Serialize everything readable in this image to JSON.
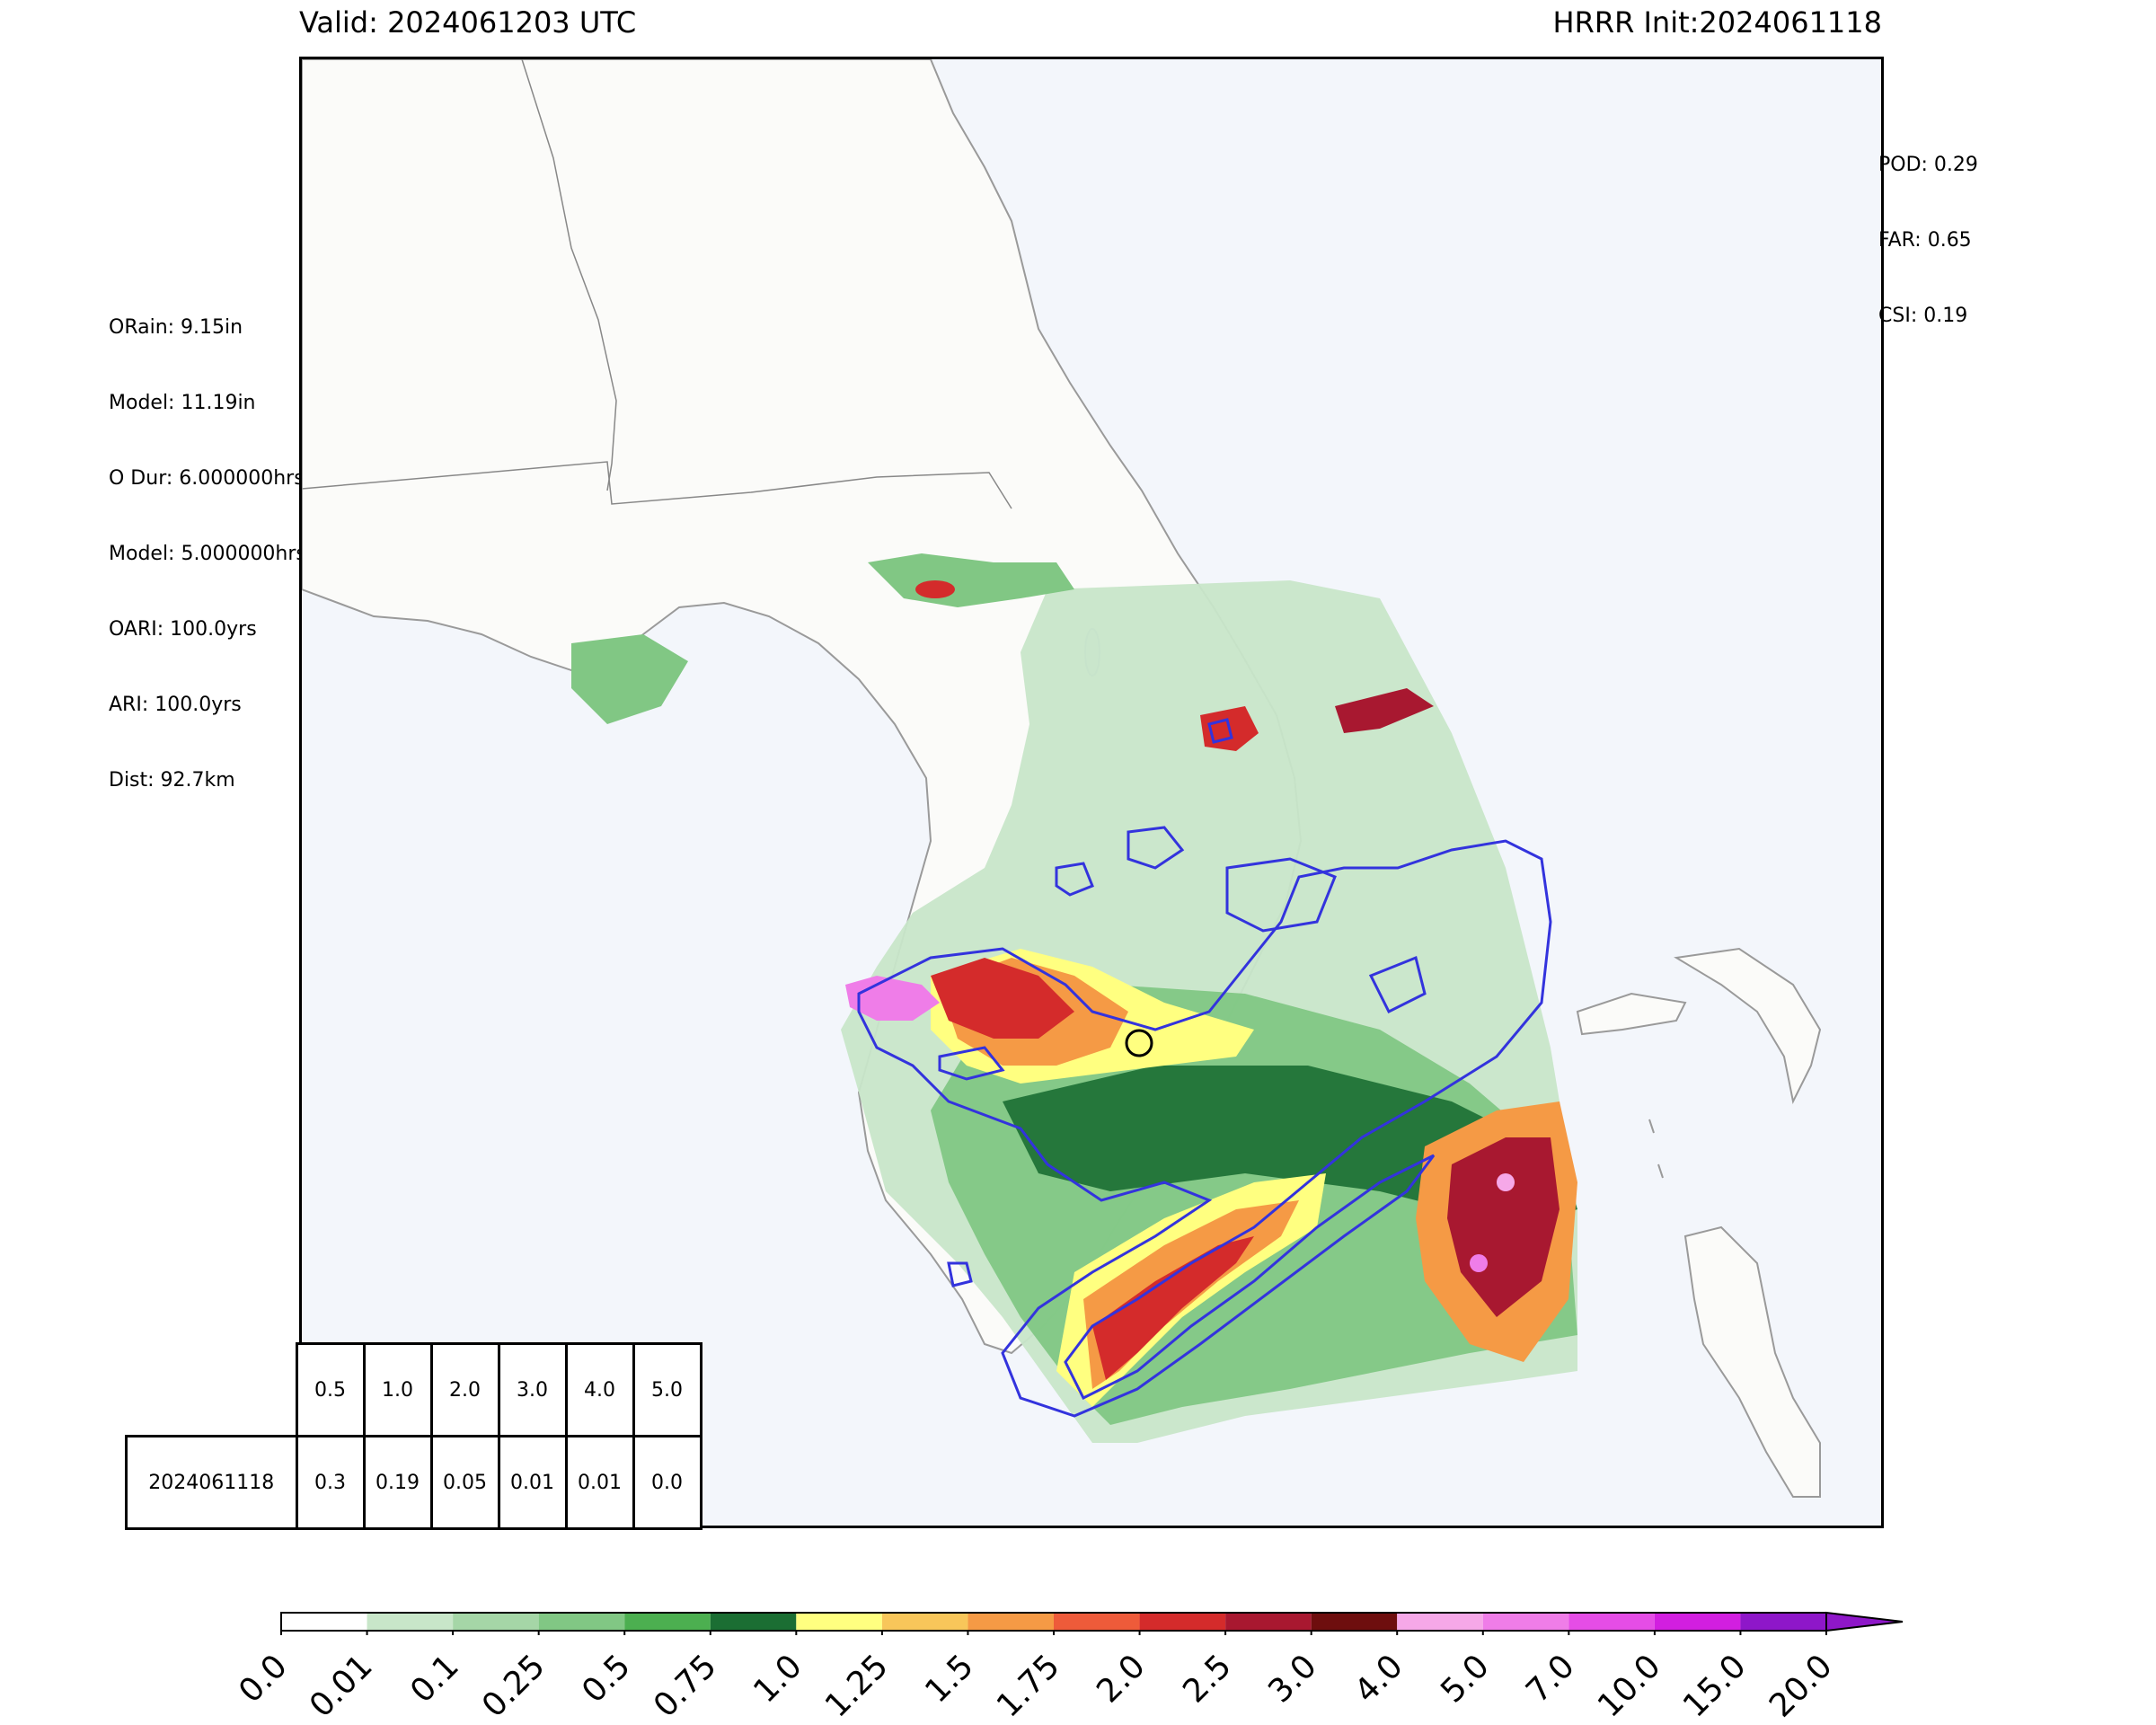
{
  "header": {
    "valid_label": "Valid: 2024061203 UTC",
    "init_label": "HRRR Init:2024061118"
  },
  "left_stats": [
    "ORain: 9.15in",
    "Model: 11.19in",
    "O Dur: 6.000000hrs",
    "Model: 5.000000hrs",
    "OARI: 100.0yrs",
    "ARI: 100.0yrs",
    "Dist: 92.7km"
  ],
  "right_stats": [
    "POD: 0.29",
    "FAR: 0.65",
    "CSI: 0.19"
  ],
  "skill_table": {
    "thresholds": [
      "0.5",
      "1.0",
      "2.0",
      "3.0",
      "4.0",
      "5.0"
    ],
    "rows": [
      {
        "label": "2024061118",
        "values": [
          "0.3",
          "0.19",
          "0.05",
          "0.01",
          "0.01",
          "0.0"
        ]
      }
    ]
  },
  "colorbar": {
    "ticks": [
      "0.0",
      "0.01",
      "0.1",
      "0.25",
      "0.5",
      "0.75",
      "1.0",
      "1.25",
      "1.5",
      "1.75",
      "2.0",
      "2.5",
      "3.0",
      "4.0",
      "5.0",
      "7.0",
      "10.0",
      "15.0",
      "20.0"
    ],
    "colors": [
      "#ffffff",
      "#c8e6c9",
      "#a5d6a7",
      "#81c784",
      "#4caf50",
      "#1b6e33",
      "#ffff80",
      "#f8c65a",
      "#f59a45",
      "#ee5b3a",
      "#d42b2b",
      "#a81830",
      "#6e0e0e",
      "#f6a8e8",
      "#ef7de8",
      "#e54de6",
      "#d21fe0",
      "#8e17c9"
    ],
    "extend": "max"
  },
  "map": {
    "land_color": "#fbfbf9",
    "water_color": "#f3f6fb",
    "observed_contour_color": "#3333dd",
    "target_marker": "circle"
  }
}
